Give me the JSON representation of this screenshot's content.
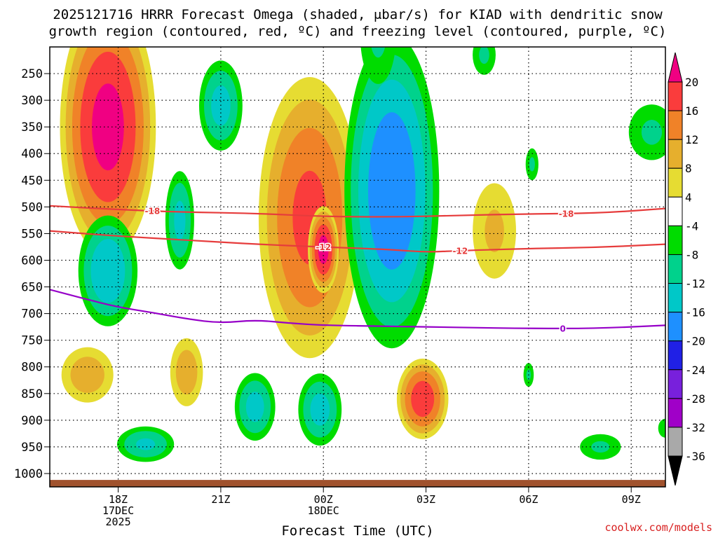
{
  "chart_data": {
    "type": "heatmap",
    "title_lines": [
      "2025121716 HRRR Forecast Omega (shaded, μbar/s) for KIAD with dendritic snow",
      "growth region (contoured, red, ºC) and freezing level (contoured, purple, ºC)"
    ],
    "xlabel": "Forecast Time (UTC)",
    "ylabel": "",
    "credit": "coolwx.com/models",
    "x_range_hours": [
      -2.0,
      16.0
    ],
    "y_range_hPa": [
      200,
      1025
    ],
    "x_ticks": [
      {
        "h": 0,
        "lines": [
          "18Z",
          "17DEC",
          "2025"
        ]
      },
      {
        "h": 3,
        "lines": [
          "21Z"
        ]
      },
      {
        "h": 6,
        "lines": [
          "00Z",
          "18DEC"
        ]
      },
      {
        "h": 9,
        "lines": [
          "03Z"
        ]
      },
      {
        "h": 12,
        "lines": [
          "06Z"
        ]
      },
      {
        "h": 15,
        "lines": [
          "09Z"
        ]
      }
    ],
    "y_ticks": [
      250,
      300,
      350,
      400,
      450,
      500,
      550,
      600,
      650,
      700,
      750,
      800,
      850,
      900,
      950,
      1000
    ],
    "colorbar": {
      "levels": [
        -36,
        -32,
        -28,
        -24,
        -20,
        -16,
        -12,
        -8,
        -4,
        4,
        8,
        12,
        16,
        20
      ],
      "colors": [
        "#000000",
        "#a9a9a9",
        "#a000c8",
        "#7820dc",
        "#2020e6",
        "#1e90ff",
        "#00c8c8",
        "#00d28c",
        "#00dc00",
        "#ffffff",
        "#e6dc32",
        "#e6af2d",
        "#f08228",
        "#fa3c3c",
        "#f00082"
      ]
    },
    "omega_features": [
      {
        "id": "o1",
        "cx": -0.3,
        "cy": 350,
        "rx": 1.55,
        "ry": 270,
        "peak": 22
      },
      {
        "id": "o2",
        "cx": 5.6,
        "cy": 520,
        "rx": 1.7,
        "ry": 300,
        "peak": 17.5
      },
      {
        "id": "o3",
        "cx": 6.0,
        "cy": 580,
        "rx": 0.5,
        "ry": 90,
        "peak": 22
      },
      {
        "id": "o4",
        "cx": -0.9,
        "cy": 815,
        "rx": 0.95,
        "ry": 65,
        "peak": 11
      },
      {
        "id": "o5",
        "cx": 2.0,
        "cy": 810,
        "rx": 0.6,
        "ry": 80,
        "peak": 11
      },
      {
        "id": "o6",
        "cx": 8.9,
        "cy": 860,
        "rx": 0.85,
        "ry": 85,
        "peak": 19
      },
      {
        "id": "o7",
        "cx": 11.0,
        "cy": 545,
        "rx": 0.85,
        "ry": 120,
        "peak": 9
      },
      {
        "id": "o8",
        "cx": 3.0,
        "cy": 310,
        "rx": 0.75,
        "ry": 100,
        "peak": -14
      },
      {
        "id": "o9",
        "cx": 1.8,
        "cy": 525,
        "rx": 0.5,
        "ry": 110,
        "peak": -13.5
      },
      {
        "id": "o10",
        "cx": -0.3,
        "cy": 620,
        "rx": 1.0,
        "ry": 120,
        "peak": -16
      },
      {
        "id": "o11",
        "cx": 0.8,
        "cy": 945,
        "rx": 1.0,
        "ry": 40,
        "peak": -13
      },
      {
        "id": "o12",
        "cx": 8.0,
        "cy": 470,
        "rx": 1.55,
        "ry": 330,
        "peak": -20
      },
      {
        "id": "o13",
        "cx": 7.6,
        "cy": 180,
        "rx": 0.7,
        "ry": 120,
        "peak": -9
      },
      {
        "id": "o14",
        "cx": 4.0,
        "cy": 875,
        "rx": 0.7,
        "ry": 75,
        "peak": -14
      },
      {
        "id": "o15",
        "cx": 5.9,
        "cy": 880,
        "rx": 0.75,
        "ry": 80,
        "peak": -14
      },
      {
        "id": "o16",
        "cx": 10.7,
        "cy": 215,
        "rx": 0.45,
        "ry": 50,
        "peak": -9
      },
      {
        "id": "o17",
        "cx": 12.1,
        "cy": 420,
        "rx": 0.25,
        "ry": 40,
        "peak": -9
      },
      {
        "id": "o18",
        "cx": 12.0,
        "cy": 815,
        "rx": 0.2,
        "ry": 30,
        "peak": -9
      },
      {
        "id": "o19",
        "cx": 14.1,
        "cy": 950,
        "rx": 0.8,
        "ry": 32,
        "peak": -9
      },
      {
        "id": "o20",
        "cx": 15.6,
        "cy": 360,
        "rx": 0.9,
        "ry": 70,
        "peak": -9
      },
      {
        "id": "o21",
        "cx": 16.0,
        "cy": 915,
        "rx": 0.3,
        "ry": 25,
        "peak": -8
      }
    ],
    "temperature_lines": [
      {
        "label": "-18",
        "color": "#e63c3c",
        "label_at_h": [
          1.0,
          13.1
        ],
        "points": [
          [
            -2,
            498
          ],
          [
            0,
            505
          ],
          [
            2,
            510
          ],
          [
            4,
            512
          ],
          [
            6,
            518
          ],
          [
            8,
            519
          ],
          [
            10,
            516
          ],
          [
            12,
            513
          ],
          [
            14,
            512
          ],
          [
            16,
            503
          ]
        ]
      },
      {
        "label": "-12",
        "color": "#e63c3c",
        "label_at_h": [
          6.0,
          10.0
        ],
        "points": [
          [
            -2,
            545
          ],
          [
            0,
            555
          ],
          [
            2,
            562
          ],
          [
            4,
            570
          ],
          [
            6,
            575
          ],
          [
            8,
            580
          ],
          [
            9,
            585
          ],
          [
            10,
            582
          ],
          [
            12,
            578
          ],
          [
            14,
            576
          ],
          [
            16,
            570
          ]
        ]
      },
      {
        "label": "0",
        "color": "#9600c8",
        "label_at_h": [
          13.0
        ],
        "points": [
          [
            -2,
            655
          ],
          [
            -1,
            672
          ],
          [
            0,
            688
          ],
          [
            1,
            698
          ],
          [
            2,
            710
          ],
          [
            3,
            718
          ],
          [
            4,
            712
          ],
          [
            5,
            718
          ],
          [
            6,
            722
          ],
          [
            8,
            724
          ],
          [
            10,
            726
          ],
          [
            12,
            728
          ],
          [
            14,
            728
          ],
          [
            16,
            722
          ]
        ]
      }
    ],
    "ground_hPa": 1012
  }
}
